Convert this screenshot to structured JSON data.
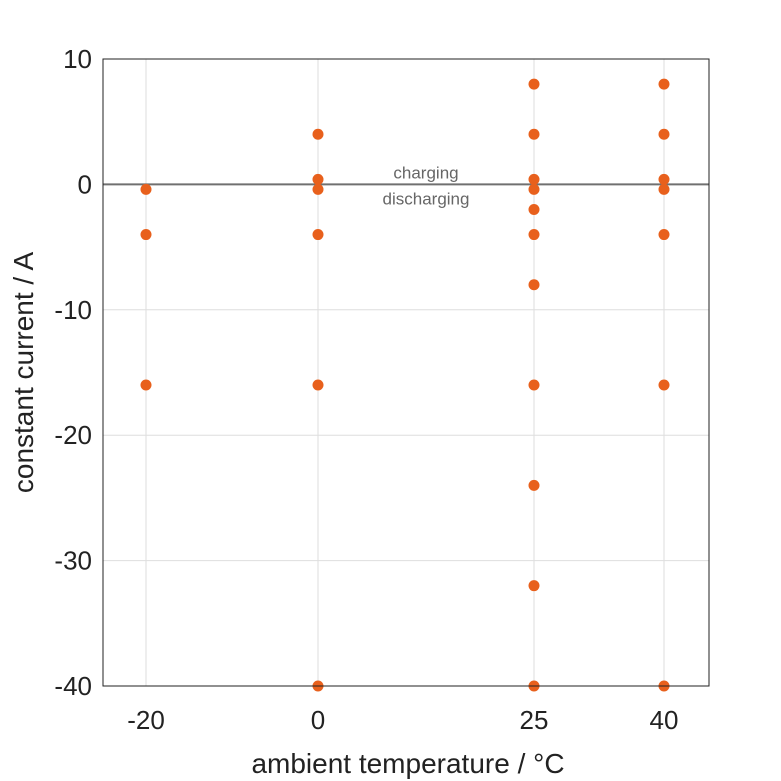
{
  "chart_data": {
    "type": "scatter",
    "title": "",
    "xlabel": "ambient temperature / °C",
    "ylabel": "constant current / A",
    "xlim": [
      -25,
      48
    ],
    "ylim": [
      -40,
      10
    ],
    "x_scale": "categorical",
    "x_ticks": [
      -20,
      0,
      25,
      40
    ],
    "x_tick_labels": [
      "-20",
      "0",
      "25",
      "40"
    ],
    "y_ticks": [
      10,
      0,
      -10,
      -20,
      -30,
      -40
    ],
    "y_tick_labels": [
      "10",
      "0",
      "-10",
      "-20",
      "-30",
      "-40"
    ],
    "grid": true,
    "reference_line": {
      "y": 0,
      "color": "#707070"
    },
    "annotations": [
      {
        "text": "charging",
        "position": "above zero line"
      },
      {
        "text": "discharging",
        "position": "below zero line"
      }
    ],
    "marker_color": "#e8601c",
    "points": [
      {
        "x": -20,
        "y": -0.4
      },
      {
        "x": -20,
        "y": -4
      },
      {
        "x": -20,
        "y": -16
      },
      {
        "x": 0,
        "y": 4
      },
      {
        "x": 0,
        "y": 0.4
      },
      {
        "x": 0,
        "y": -0.4
      },
      {
        "x": 0,
        "y": -4
      },
      {
        "x": 0,
        "y": -16
      },
      {
        "x": 0,
        "y": -40
      },
      {
        "x": 25,
        "y": 8
      },
      {
        "x": 25,
        "y": 4
      },
      {
        "x": 25,
        "y": 0.4
      },
      {
        "x": 25,
        "y": -0.4
      },
      {
        "x": 25,
        "y": -2
      },
      {
        "x": 25,
        "y": -4
      },
      {
        "x": 25,
        "y": -8
      },
      {
        "x": 25,
        "y": -16
      },
      {
        "x": 25,
        "y": -24
      },
      {
        "x": 25,
        "y": -32
      },
      {
        "x": 25,
        "y": -40
      },
      {
        "x": 40,
        "y": 8
      },
      {
        "x": 40,
        "y": 4
      },
      {
        "x": 40,
        "y": 0.4
      },
      {
        "x": 40,
        "y": -0.4
      },
      {
        "x": 40,
        "y": -4
      },
      {
        "x": 40,
        "y": -16
      },
      {
        "x": 40,
        "y": -40
      }
    ]
  }
}
